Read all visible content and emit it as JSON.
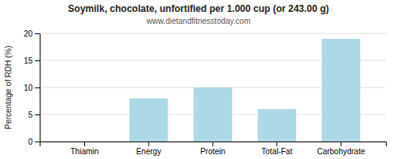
{
  "chart_data": {
    "type": "bar",
    "title": "Soymilk, chocolate, unfortified per 1.000 cup (or 243.00 g)",
    "subtitle": "www.dietandfitnesstoday.com",
    "categories": [
      "Thiamin",
      "Energy",
      "Protein",
      "Total-Fat",
      "Carbohydrate"
    ],
    "values": [
      0,
      8,
      10,
      6,
      19
    ],
    "color": "#add8e6",
    "ylabel": "Percentage of RDH (%)",
    "ylim": [
      0,
      20
    ],
    "yticks": [
      0,
      5,
      10,
      15,
      20
    ],
    "grid": true
  }
}
